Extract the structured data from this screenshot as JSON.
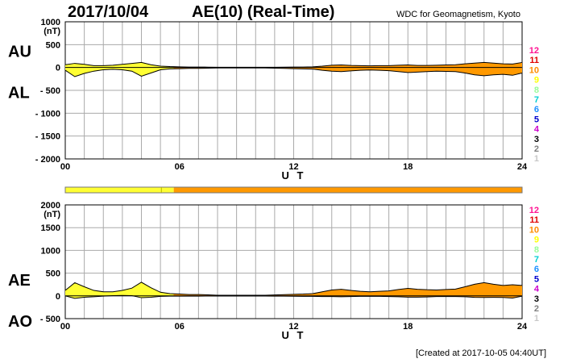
{
  "header": {
    "date": "2017/10/04",
    "title": "AE(10) (Real-Time)",
    "source": "WDC for Geomagnetism, Kyoto"
  },
  "footer": {
    "created": "[Created at 2017-10-05 04:40UT]"
  },
  "legend": {
    "numbers": [
      "12",
      "11",
      "10",
      "9",
      "8",
      "7",
      "6",
      "5",
      "4",
      "3",
      "2",
      "1"
    ],
    "colors": [
      "#ff1493",
      "#e00000",
      "#ff8c00",
      "#ffff00",
      "#98fb98",
      "#00ced1",
      "#1e90ff",
      "#0000cd",
      "#cc00cc",
      "#000000",
      "#808080",
      "#c8c8c8"
    ]
  },
  "colors": {
    "fill_early": "#ffff33",
    "fill_late": "#ff9900",
    "grid": "#aaaaaa",
    "line": "#000000"
  },
  "chart_data": [
    {
      "type": "area",
      "panel": "AU/AL",
      "label_upper": "AU",
      "label_lower": "AL",
      "unit": "(nT)",
      "xlabel": "U T",
      "xlim": [
        0,
        24
      ],
      "ylim": [
        -2000,
        1000
      ],
      "x_tick_labels": [
        "00",
        "06",
        "12",
        "18",
        "24"
      ],
      "y_tick_labels": [
        "1000",
        "500",
        "0",
        "- 500",
        "- 1000",
        "- 1500",
        "- 2000"
      ],
      "x": [
        0,
        0.5,
        1,
        1.5,
        2,
        2.5,
        3,
        3.5,
        4,
        4.5,
        5,
        5.5,
        6,
        6.5,
        7,
        7.5,
        8,
        8.5,
        9,
        9.5,
        10,
        10.5,
        11,
        11.5,
        12,
        12.5,
        13,
        13.5,
        14,
        14.5,
        15,
        15.5,
        16,
        16.5,
        17,
        17.5,
        18,
        18.5,
        19,
        19.5,
        20,
        20.5,
        21,
        21.5,
        22,
        22.5,
        23,
        23.5,
        24
      ],
      "series": [
        {
          "name": "AU",
          "values": [
            60,
            90,
            70,
            40,
            40,
            50,
            70,
            90,
            110,
            60,
            30,
            20,
            15,
            10,
            10,
            8,
            5,
            5,
            5,
            5,
            5,
            5,
            5,
            8,
            10,
            10,
            15,
            30,
            50,
            55,
            45,
            40,
            35,
            40,
            40,
            50,
            55,
            45,
            45,
            50,
            55,
            60,
            80,
            95,
            110,
            95,
            80,
            75,
            110
          ]
        },
        {
          "name": "AL",
          "values": [
            -60,
            -200,
            -130,
            -80,
            -50,
            -40,
            -50,
            -80,
            -190,
            -120,
            -50,
            -30,
            -25,
            -20,
            -20,
            -15,
            -10,
            -10,
            -10,
            -10,
            -10,
            -10,
            -15,
            -20,
            -25,
            -30,
            -35,
            -60,
            -80,
            -90,
            -75,
            -60,
            -55,
            -60,
            -70,
            -90,
            -110,
            -100,
            -90,
            -80,
            -85,
            -90,
            -120,
            -160,
            -180,
            -160,
            -150,
            -170,
            -120
          ]
        }
      ],
      "color_bar": [
        {
          "from": 0,
          "to": 5.7,
          "level": "9"
        },
        {
          "from": 5.7,
          "to": 24,
          "level": "10"
        }
      ]
    },
    {
      "type": "area",
      "panel": "AE/AO",
      "label_upper": "AE",
      "label_lower": "AO",
      "unit": "(nT)",
      "xlabel": "U T",
      "xlim": [
        0,
        24
      ],
      "ylim": [
        -500,
        2000
      ],
      "x_tick_labels": [
        "00",
        "06",
        "12",
        "18",
        "24"
      ],
      "y_tick_labels": [
        "2000",
        "1500",
        "1000",
        "500",
        "0",
        "- 500"
      ],
      "x": [
        0,
        0.5,
        1,
        1.5,
        2,
        2.5,
        3,
        3.5,
        4,
        4.5,
        5,
        5.5,
        6,
        6.5,
        7,
        7.5,
        8,
        8.5,
        9,
        9.5,
        10,
        10.5,
        11,
        11.5,
        12,
        12.5,
        13,
        13.5,
        14,
        14.5,
        15,
        15.5,
        16,
        16.5,
        17,
        17.5,
        18,
        18.5,
        19,
        19.5,
        20,
        20.5,
        21,
        21.5,
        22,
        22.5,
        23,
        23.5,
        24
      ],
      "series": [
        {
          "name": "AE",
          "values": [
            120,
            290,
            200,
            120,
            90,
            90,
            120,
            170,
            300,
            180,
            80,
            50,
            40,
            30,
            30,
            23,
            15,
            15,
            15,
            15,
            15,
            15,
            20,
            28,
            35,
            40,
            50,
            90,
            130,
            145,
            120,
            100,
            90,
            100,
            110,
            140,
            165,
            145,
            135,
            130,
            140,
            150,
            200,
            255,
            290,
            255,
            230,
            245,
            230
          ]
        },
        {
          "name": "AO",
          "values": [
            0,
            -55,
            -30,
            -20,
            -5,
            5,
            10,
            5,
            -40,
            -30,
            -10,
            -5,
            -5,
            -5,
            -5,
            -4,
            -3,
            -3,
            -3,
            -3,
            -3,
            -3,
            -5,
            -6,
            -8,
            -10,
            -10,
            -15,
            -15,
            -18,
            -15,
            -10,
            -10,
            -10,
            -15,
            -20,
            -28,
            -28,
            -23,
            -15,
            -15,
            -15,
            -20,
            -33,
            -35,
            -33,
            -35,
            -48,
            -5
          ]
        }
      ]
    }
  ]
}
